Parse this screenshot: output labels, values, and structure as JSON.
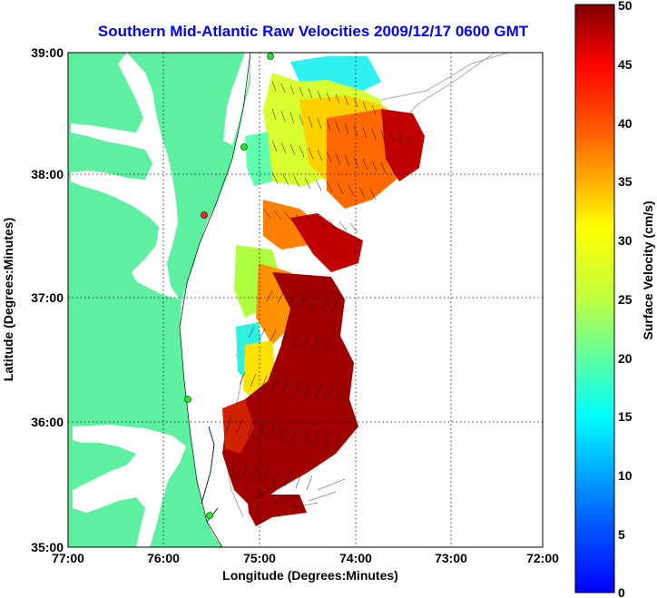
{
  "chart_data": {
    "type": "heatmap",
    "title": "Southern Mid-Atlantic Raw Velocities 2009/12/17 0600 GMT",
    "xlabel": "Longitude (Degrees:Minutes)",
    "ylabel": "Latitude (Degrees:Minutes)",
    "x_ticks": [
      "77:00",
      "76:00",
      "75:00",
      "74:00",
      "73:00",
      "72:00"
    ],
    "y_ticks": [
      "39:00",
      "38:00",
      "37:00",
      "36:00",
      "35:00"
    ],
    "xlim": [
      -77,
      -72
    ],
    "ylim": [
      35,
      39
    ],
    "grid": true,
    "colorbar": {
      "label": "Surface Velocity (cm/s)",
      "min": 0,
      "max": 50,
      "ticks": [
        "50",
        "45",
        "40",
        "35",
        "30",
        "25",
        "20",
        "15",
        "10",
        "5",
        "0"
      ],
      "colormap": "jet"
    },
    "land_color": "#5cf0a0",
    "ocean_color": "#ffffff"
  }
}
